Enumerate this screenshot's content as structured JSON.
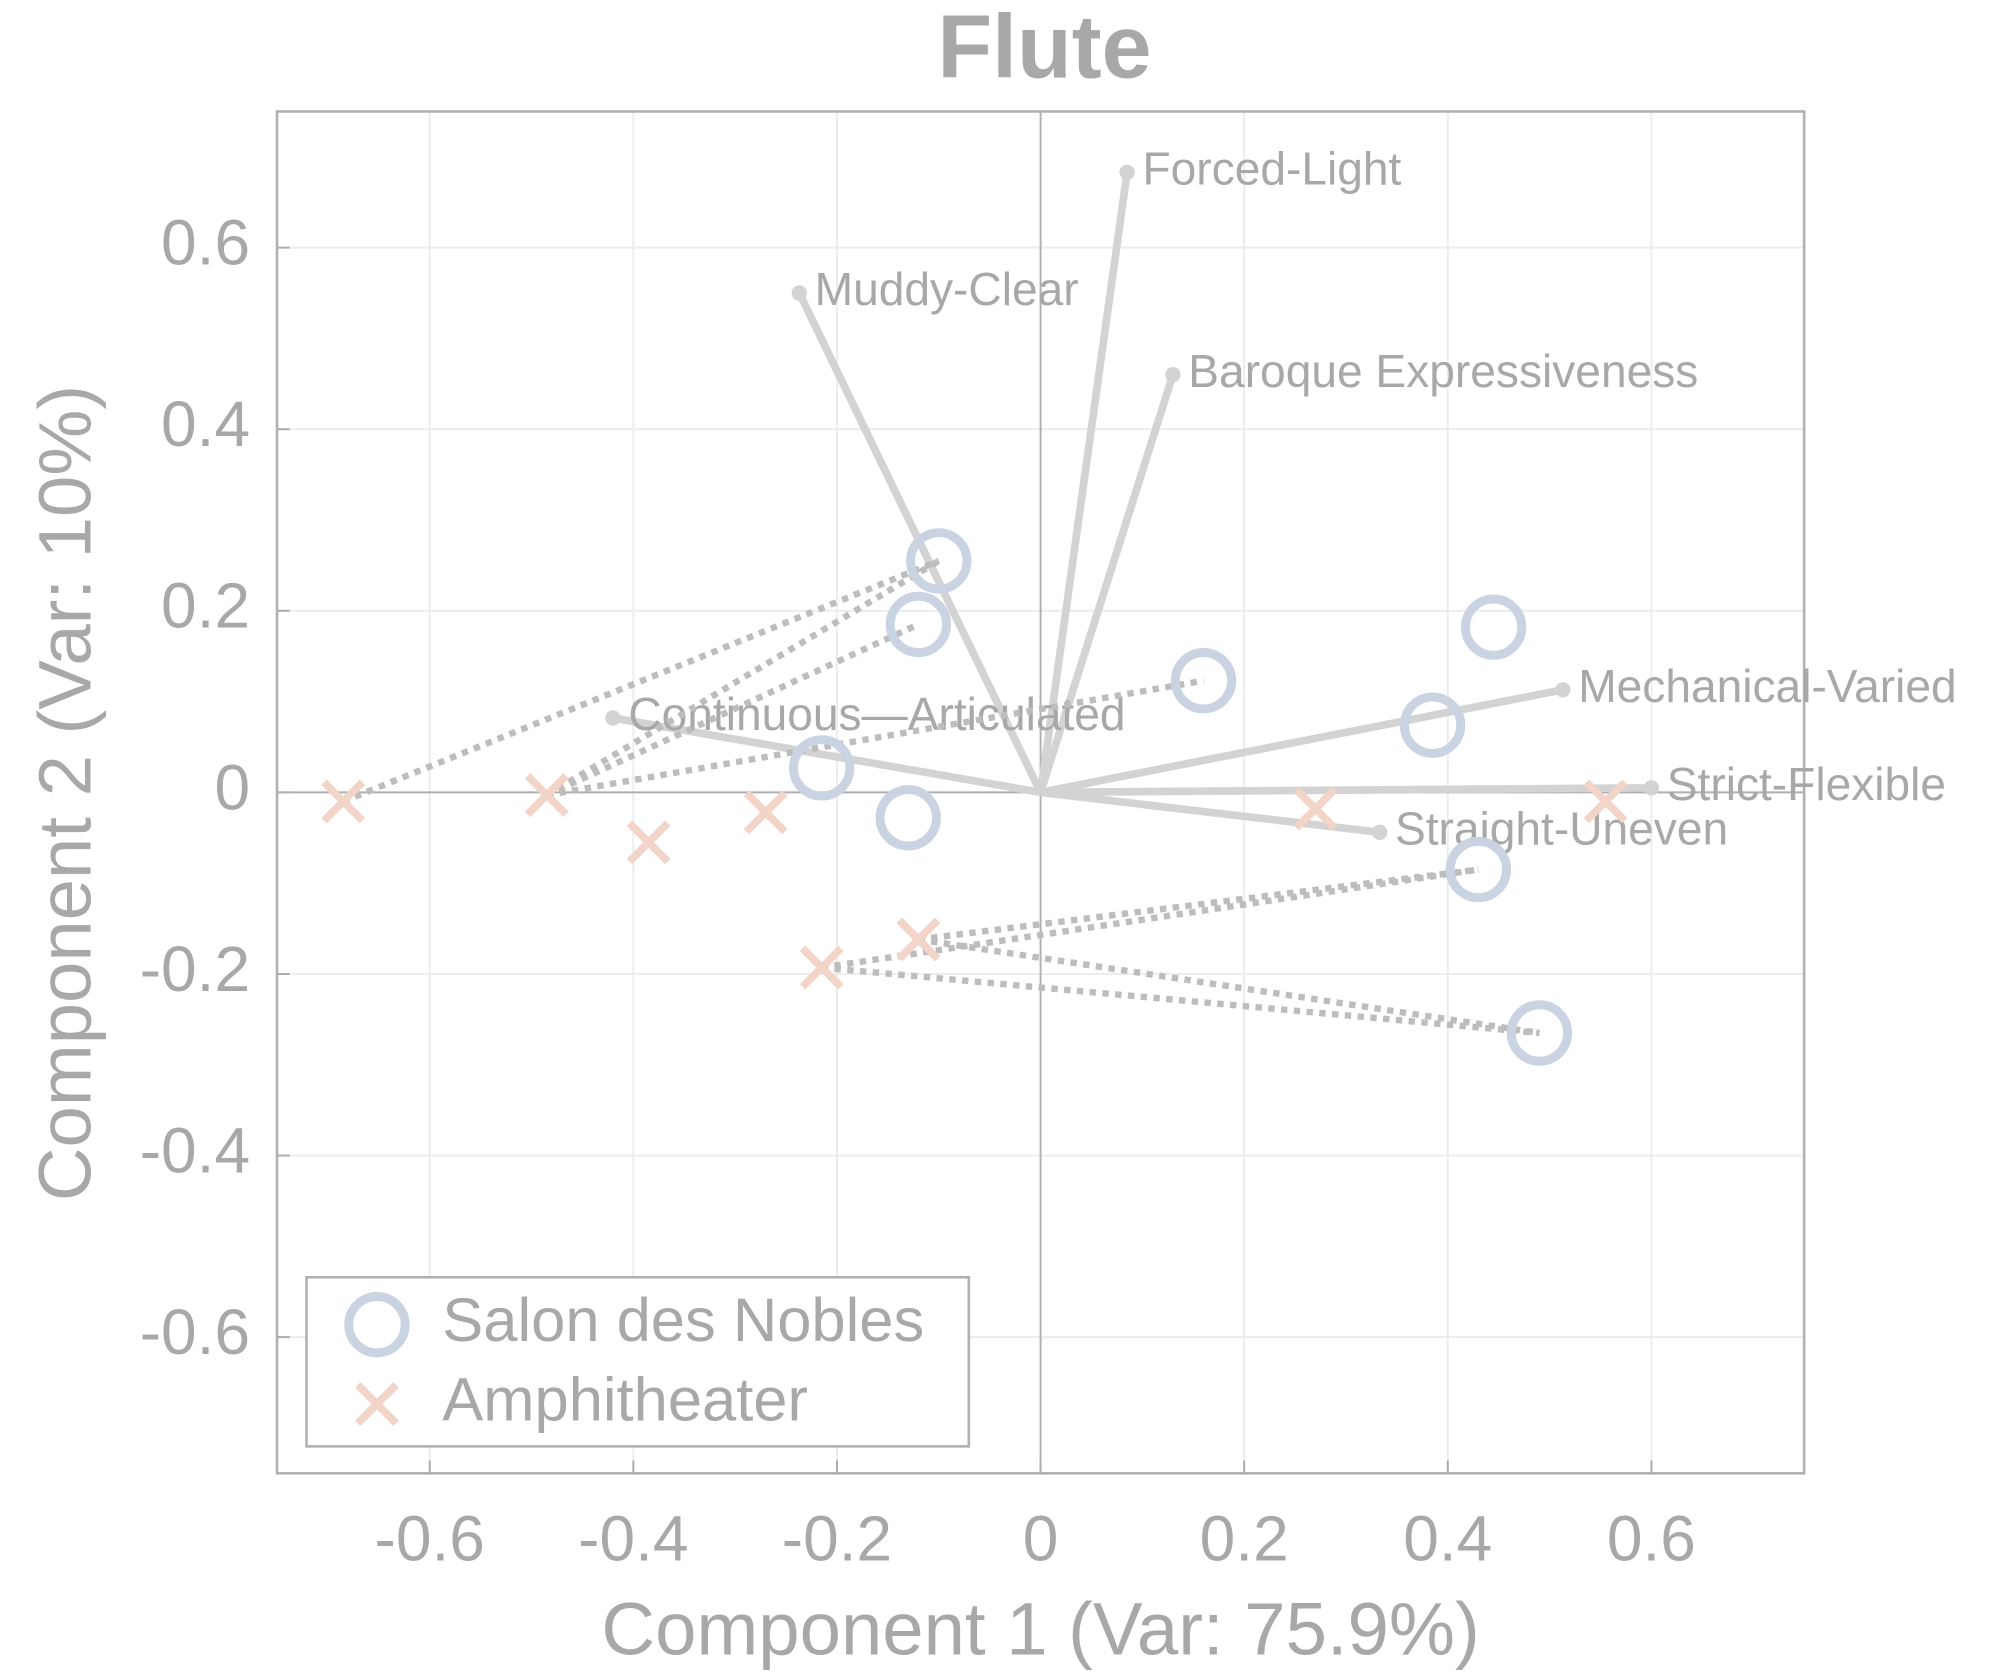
{
  "chart_data": {
    "type": "biplot",
    "title": "Flute",
    "xlabel": "Component 1 (Var: 75.9%)",
    "ylabel": "Component 2 (Var: 10%)",
    "xlim": [
      -0.75,
      0.75
    ],
    "ylim": [
      -0.75,
      0.75
    ],
    "xticks": [
      -0.6,
      -0.4,
      -0.2,
      0,
      0.2,
      0.4,
      0.6
    ],
    "yticks": [
      -0.6,
      -0.4,
      -0.2,
      0,
      0.2,
      0.4,
      0.6
    ],
    "grid": true,
    "legend": "lower left",
    "series": [
      {
        "name": "Salon des Nobles",
        "marker": "circle",
        "color": "#c9d3e2",
        "x": [
          -0.1,
          -0.12,
          0.16,
          0.445,
          0.385,
          -0.215,
          -0.13,
          0.43,
          0.49
        ],
        "y": [
          0.255,
          0.185,
          0.123,
          0.182,
          0.074,
          0.027,
          -0.028,
          -0.085,
          -0.265
        ]
      },
      {
        "name": "Amphitheater",
        "marker": "x",
        "color": "#f2d5c8",
        "x": [
          -0.685,
          -0.485,
          -0.385,
          -0.27,
          -0.215,
          -0.12,
          0.27,
          0.555
        ],
        "y": [
          -0.01,
          -0.003,
          -0.055,
          -0.022,
          -0.193,
          -0.162,
          -0.018,
          -0.01
        ]
      }
    ],
    "vectors": [
      {
        "name": "Forced-Light",
        "x": 0.085,
        "y": 0.683
      },
      {
        "name": "Muddy-Clear",
        "x": -0.237,
        "y": 0.55
      },
      {
        "name": "Baroque Expressiveness",
        "x": 0.13,
        "y": 0.46
      },
      {
        "name": "Mechanical-Varied",
        "x": 0.513,
        "y": 0.113
      },
      {
        "name": "Strict-Flexible",
        "x": 0.6,
        "y": 0.005
      },
      {
        "name": "Straight-Uneven",
        "x": 0.333,
        "y": -0.044
      },
      {
        "name": "Continuous—Articulated",
        "x": -0.42,
        "y": 0.082
      }
    ],
    "vector_color": "#d3d3d3",
    "connections": [
      {
        "x": [
          -0.685,
          -0.1
        ],
        "y": [
          -0.01,
          0.255
        ]
      },
      {
        "x": [
          -0.485,
          -0.1
        ],
        "y": [
          -0.003,
          0.255
        ]
      },
      {
        "x": [
          -0.485,
          -0.12
        ],
        "y": [
          -0.003,
          0.185
        ]
      },
      {
        "x": [
          -0.485,
          0.16
        ],
        "y": [
          -0.003,
          0.123
        ]
      },
      {
        "x": [
          -0.215,
          0.43
        ],
        "y": [
          -0.193,
          -0.085
        ]
      },
      {
        "x": [
          -0.215,
          0.49
        ],
        "y": [
          -0.193,
          -0.265
        ]
      },
      {
        "x": [
          -0.12,
          0.43
        ],
        "y": [
          -0.162,
          -0.085
        ]
      },
      {
        "x": [
          -0.12,
          0.49
        ],
        "y": [
          -0.162,
          -0.265
        ]
      }
    ],
    "connection_color": "#bdbdbd"
  }
}
